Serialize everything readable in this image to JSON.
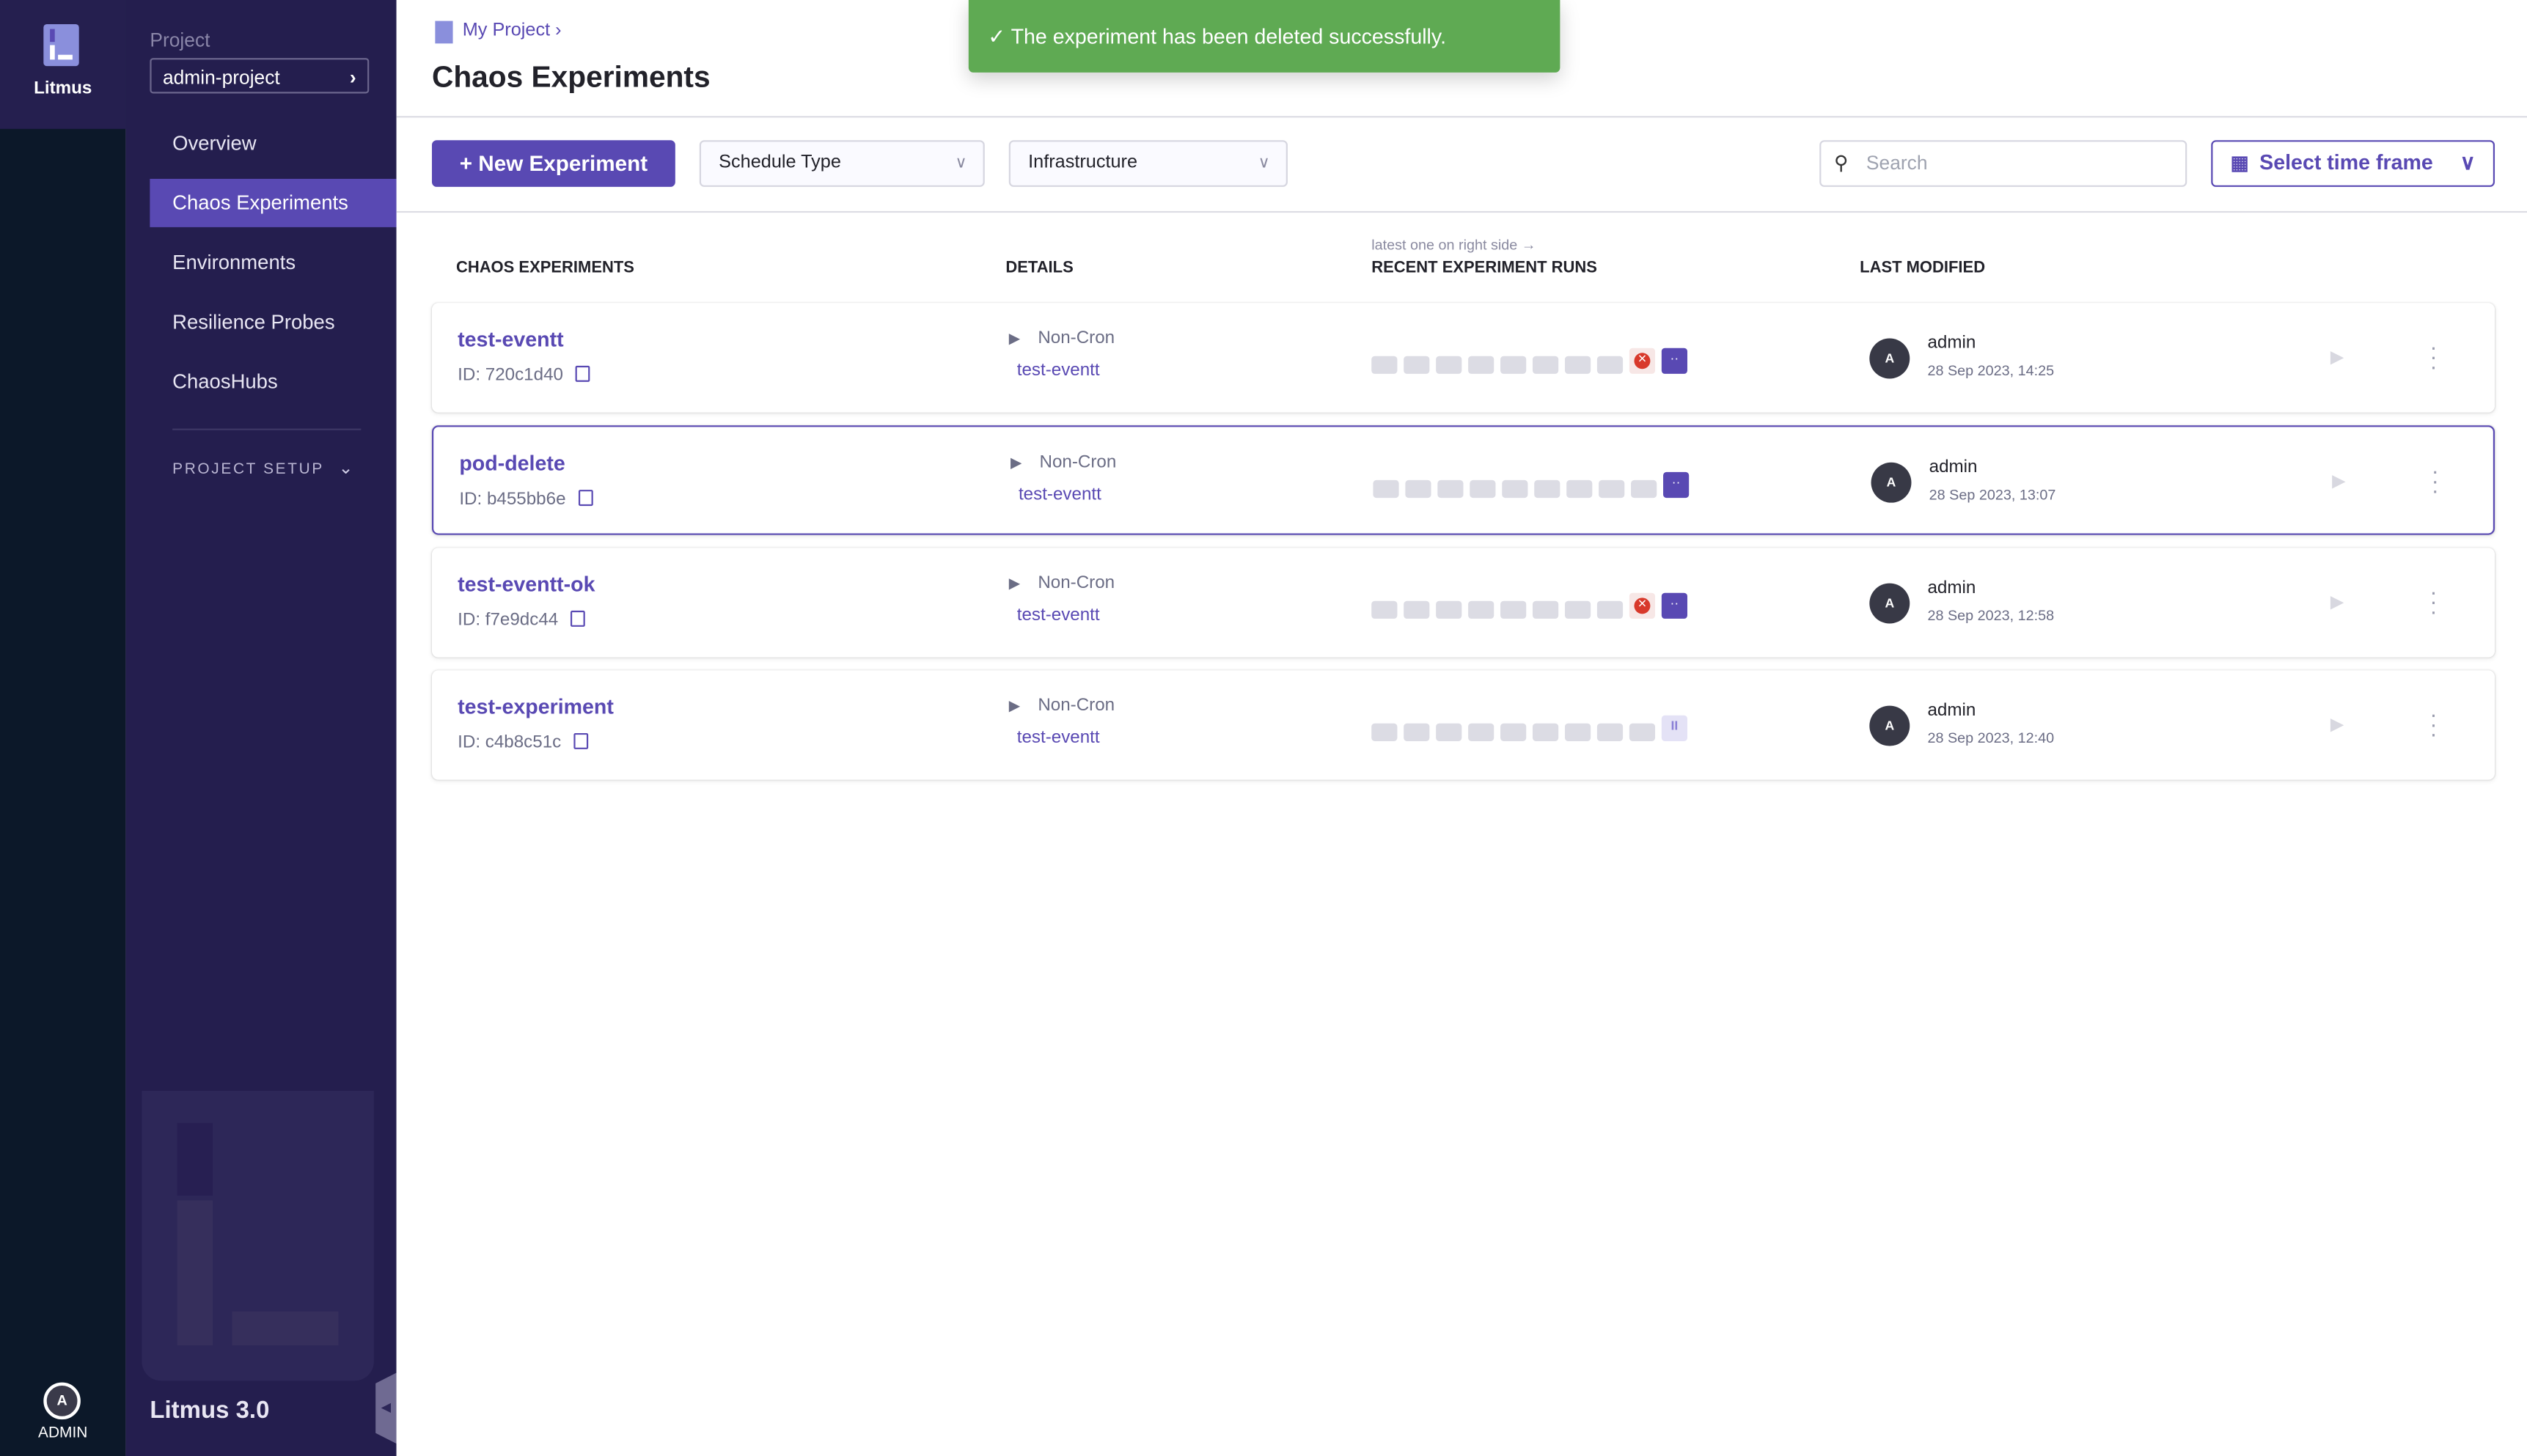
{
  "app": {
    "name": "Litmus",
    "version": "Litmus 3.0",
    "user_initial": "A",
    "user_label": "ADMIN"
  },
  "sidebar": {
    "project_label": "Project",
    "project_name": "admin-project",
    "items": [
      {
        "label": "Overview",
        "active": false
      },
      {
        "label": "Chaos Experiments",
        "active": true
      },
      {
        "label": "Environments",
        "active": false
      },
      {
        "label": "Resilience Probes",
        "active": false
      },
      {
        "label": "ChaosHubs",
        "active": false
      }
    ],
    "project_setup": "PROJECT SETUP"
  },
  "header": {
    "breadcrumb": "My Project",
    "title": "Chaos Experiments"
  },
  "toast": {
    "message": "The experiment has been deleted successfully.",
    "color": "#5faa53"
  },
  "toolbar": {
    "new_experiment": "New Experiment",
    "schedule_type": "Schedule Type",
    "infrastructure": "Infrastructure",
    "search_placeholder": "Search",
    "time_frame": "Select time frame"
  },
  "table": {
    "columns": {
      "experiments": "CHAOS EXPERIMENTS",
      "details": "DETAILS",
      "runs": "RECENT EXPERIMENT RUNS",
      "runs_hint": "latest one on right side →",
      "modified": "LAST MODIFIED"
    },
    "rows": [
      {
        "name": "test-eventt",
        "id": "ID: 720c1d40",
        "schedule": "Non-Cron",
        "infrastructure": "test-eventt",
        "runs": [
          "none",
          "none",
          "none",
          "none",
          "none",
          "none",
          "none",
          "none",
          "failed",
          "running"
        ],
        "user": "admin",
        "user_initial": "A",
        "modified": "28 Sep 2023, 14:25",
        "selected": false
      },
      {
        "name": "pod-delete",
        "id": "ID: b455bb6e",
        "schedule": "Non-Cron",
        "infrastructure": "test-eventt",
        "runs": [
          "none",
          "none",
          "none",
          "none",
          "none",
          "none",
          "none",
          "none",
          "none",
          "running"
        ],
        "user": "admin",
        "user_initial": "A",
        "modified": "28 Sep 2023, 13:07",
        "selected": true
      },
      {
        "name": "test-eventt-ok",
        "id": "ID: f7e9dc44",
        "schedule": "Non-Cron",
        "infrastructure": "test-eventt",
        "runs": [
          "none",
          "none",
          "none",
          "none",
          "none",
          "none",
          "none",
          "none",
          "failed",
          "running"
        ],
        "user": "admin",
        "user_initial": "A",
        "modified": "28 Sep 2023, 12:58",
        "selected": false
      },
      {
        "name": "test-experiment",
        "id": "ID: c4b8c51c",
        "schedule": "Non-Cron",
        "infrastructure": "test-eventt",
        "runs": [
          "none",
          "none",
          "none",
          "none",
          "none",
          "none",
          "none",
          "none",
          "none",
          "paused"
        ],
        "user": "admin",
        "user_initial": "A",
        "modified": "28 Sep 2023, 12:40",
        "selected": false
      }
    ]
  },
  "colors": {
    "accent": "#5949b3",
    "sidebar": "#241e4e",
    "rail": "#0c1829",
    "failed": "#d8392b"
  }
}
